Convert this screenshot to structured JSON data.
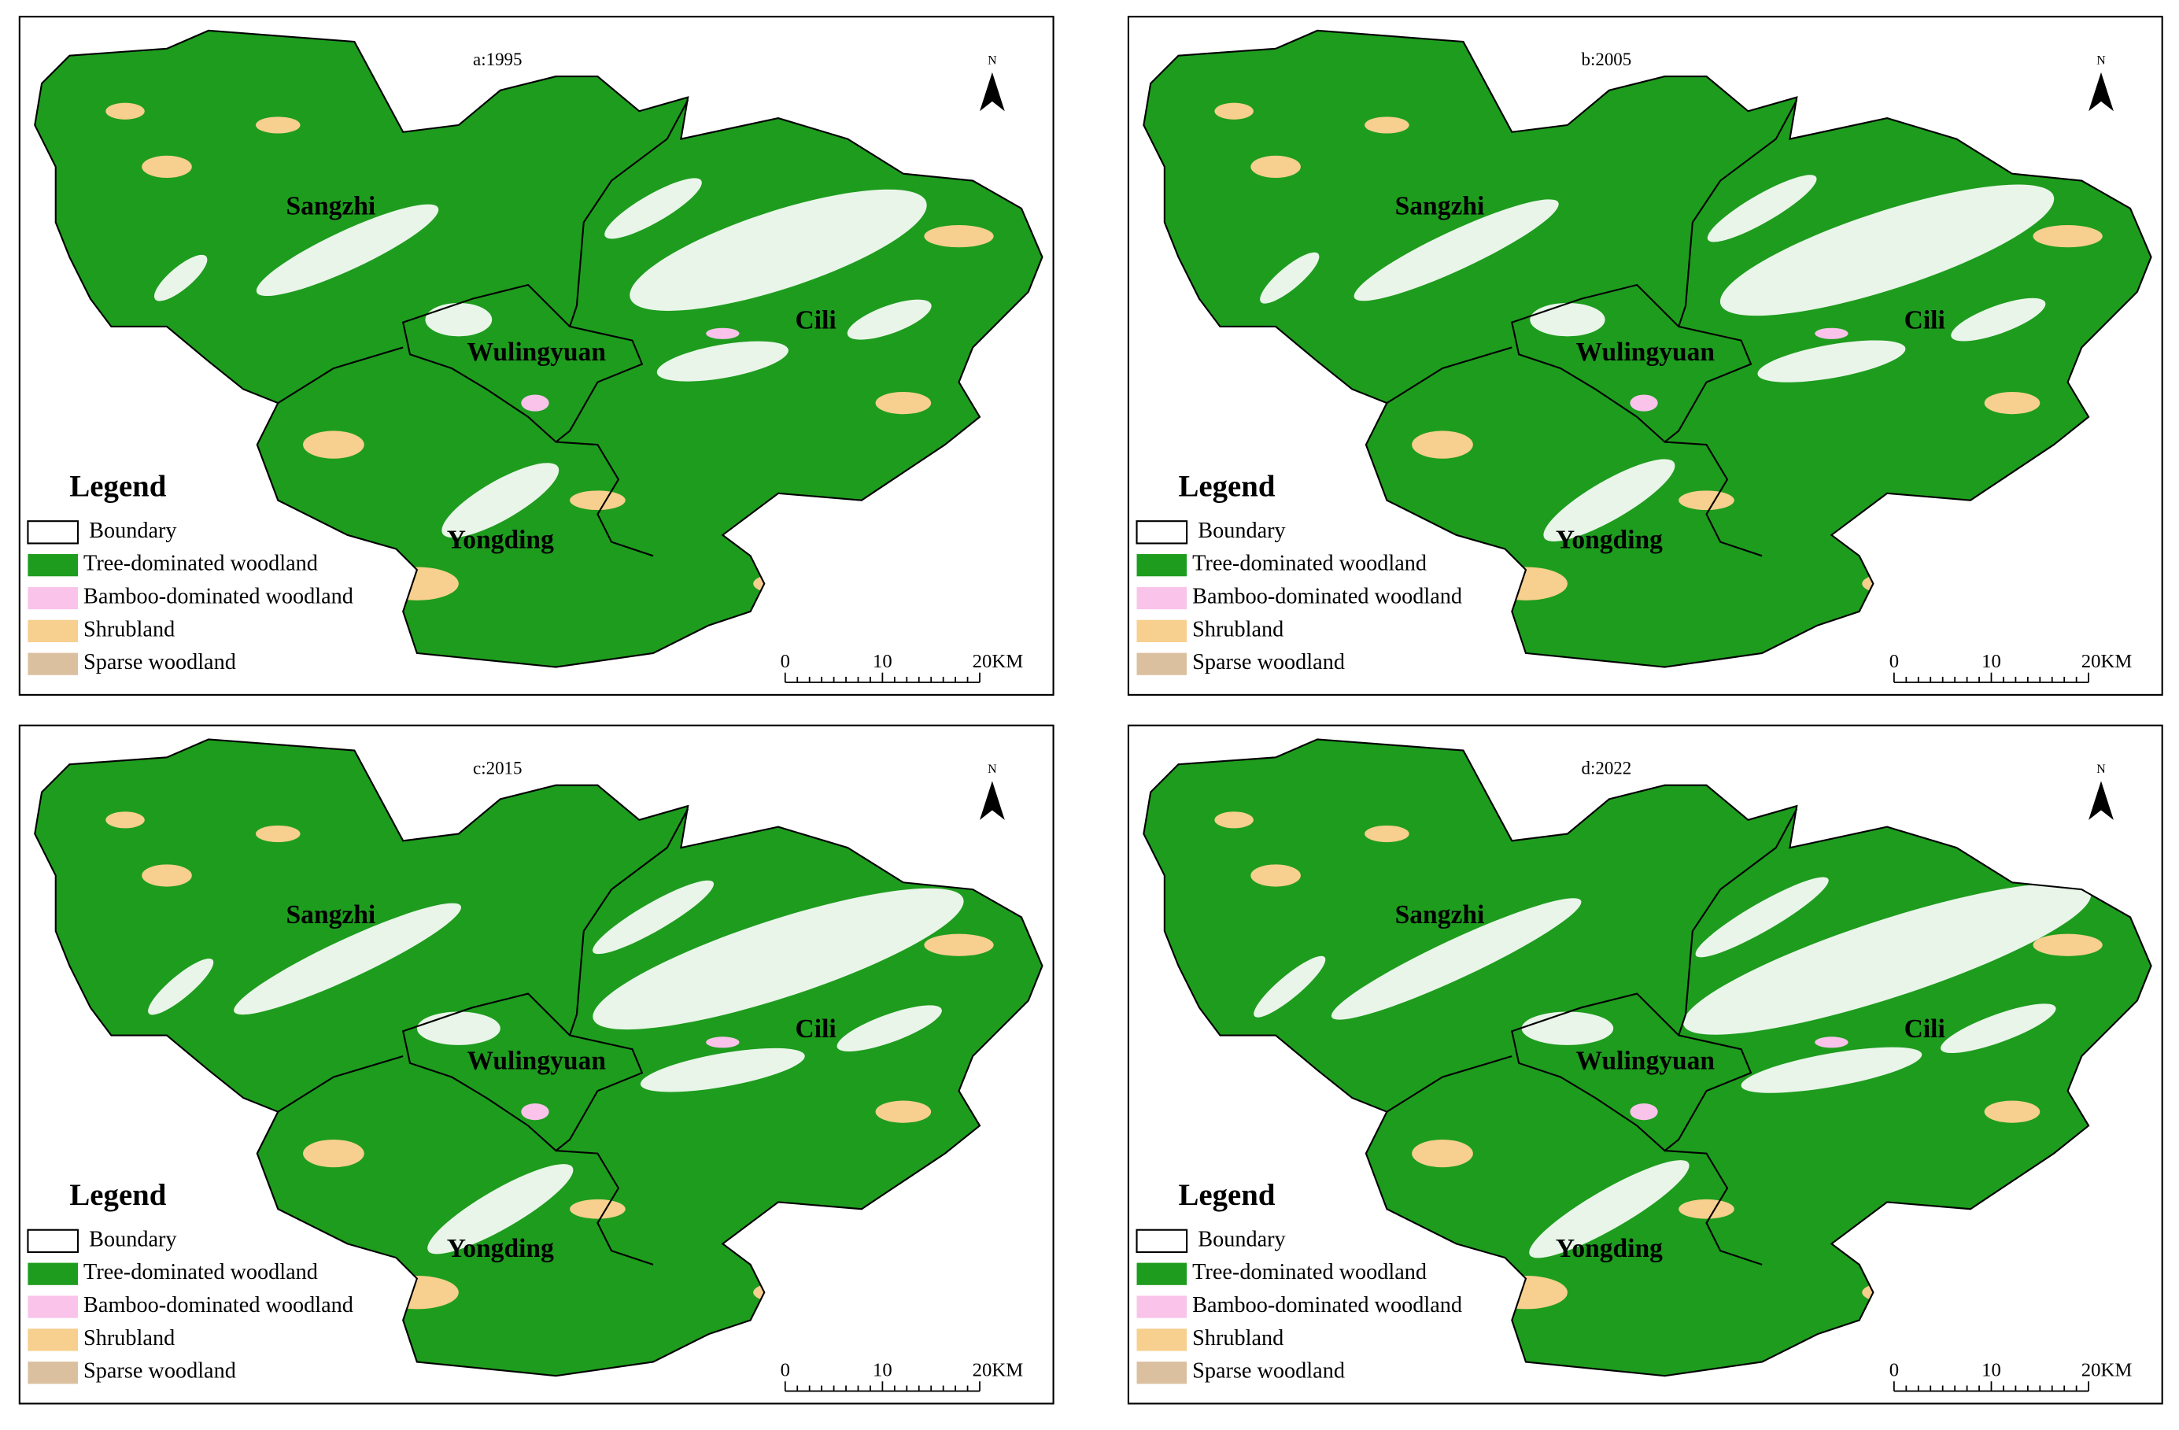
{
  "panels": [
    {
      "title": "a:1995",
      "north": "N",
      "regions": [
        "Sangzhi",
        "Cili",
        "Wulingyuan",
        "Yongding"
      ],
      "legend": {
        "title": "Legend",
        "items": [
          {
            "label": "Boundary",
            "color": "#ffffff"
          },
          {
            "label": "Tree-dominated woodland",
            "color": "#1e9c1e"
          },
          {
            "label": "Bamboo-dominated woodland",
            "color": "#f9c3ea"
          },
          {
            "label": "Shrubland",
            "color": "#f7cf8e"
          },
          {
            "label": "Sparse woodland",
            "color": "#dbc0a0"
          }
        ]
      },
      "scale": [
        "0",
        "10",
        "20KM"
      ]
    },
    {
      "title": "b:2005",
      "north": "N",
      "regions": [
        "Sangzhi",
        "Cili",
        "Wulingyuan",
        "Yongding"
      ],
      "legend": {
        "title": "Legend",
        "items": [
          {
            "label": "Boundary",
            "color": "#ffffff"
          },
          {
            "label": "Tree-dominated woodland",
            "color": "#1e9c1e"
          },
          {
            "label": "Bamboo-dominated woodland",
            "color": "#f9c3ea"
          },
          {
            "label": "Shrubland",
            "color": "#f7cf8e"
          },
          {
            "label": "Sparse woodland",
            "color": "#dbc0a0"
          }
        ]
      },
      "scale": [
        "0",
        "10",
        "20KM"
      ]
    },
    {
      "title": "c:2015",
      "north": "N",
      "regions": [
        "Sangzhi",
        "Cili",
        "Wulingyuan",
        "Yongding"
      ],
      "legend": {
        "title": "Legend",
        "items": [
          {
            "label": "Boundary",
            "color": "#ffffff"
          },
          {
            "label": "Tree-dominated woodland",
            "color": "#1e9c1e"
          },
          {
            "label": "Bamboo-dominated woodland",
            "color": "#f9c3ea"
          },
          {
            "label": "Shrubland",
            "color": "#f7cf8e"
          },
          {
            "label": "Sparse woodland",
            "color": "#dbc0a0"
          }
        ]
      },
      "scale": [
        "0",
        "10",
        "20KM"
      ]
    },
    {
      "title": "d:2022",
      "north": "N",
      "regions": [
        "Sangzhi",
        "Cili",
        "Wulingyuan",
        "Yongding"
      ],
      "legend": {
        "title": "Legend",
        "items": [
          {
            "label": "Boundary",
            "color": "#ffffff"
          },
          {
            "label": "Tree-dominated woodland",
            "color": "#1e9c1e"
          },
          {
            "label": "Bamboo-dominated woodland",
            "color": "#f9c3ea"
          },
          {
            "label": "Shrubland",
            "color": "#f7cf8e"
          },
          {
            "label": "Sparse woodland",
            "color": "#dbc0a0"
          }
        ]
      },
      "scale": [
        "0",
        "10",
        "20KM"
      ]
    }
  ]
}
